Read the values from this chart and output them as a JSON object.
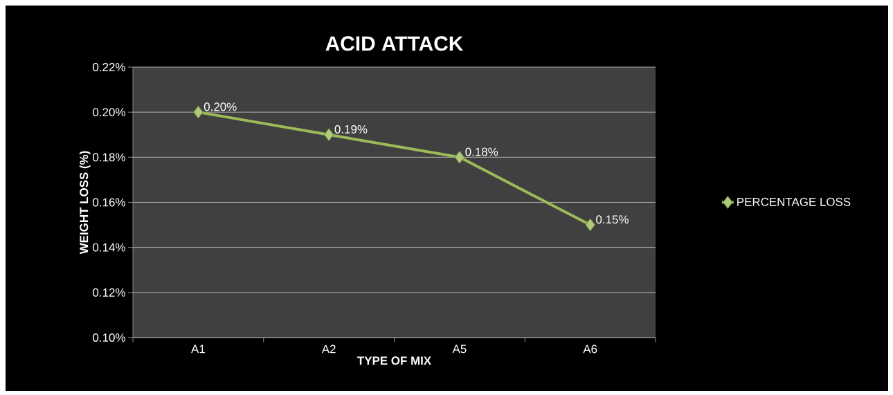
{
  "chart_data": {
    "type": "line",
    "title": "ACID ATTACK",
    "xlabel": "TYPE OF MIX",
    "ylabel": "WEIGHT LOSS (%)",
    "categories": [
      "A1",
      "A2",
      "A5",
      "A6"
    ],
    "series": [
      {
        "name": "PERCENTAGE LOSS",
        "color": "#9bbb59",
        "values": [
          0.2,
          0.19,
          0.18,
          0.15
        ],
        "value_labels": [
          "0.20%",
          "0.19%",
          "0.18%",
          "0.15%"
        ]
      }
    ],
    "ylim": [
      0.1,
      0.22
    ],
    "yticks": [
      {
        "value": 0.1,
        "label": "0.10%"
      },
      {
        "value": 0.12,
        "label": "0.12%"
      },
      {
        "value": 0.14,
        "label": "0.14%"
      },
      {
        "value": 0.16,
        "label": "0.16%"
      },
      {
        "value": 0.18,
        "label": "0.18%"
      },
      {
        "value": 0.2,
        "label": "0.20%"
      },
      {
        "value": 0.22,
        "label": "0.22%"
      }
    ],
    "grid": "y",
    "legend": "right",
    "marker": "diamond",
    "line_style": "solid"
  }
}
